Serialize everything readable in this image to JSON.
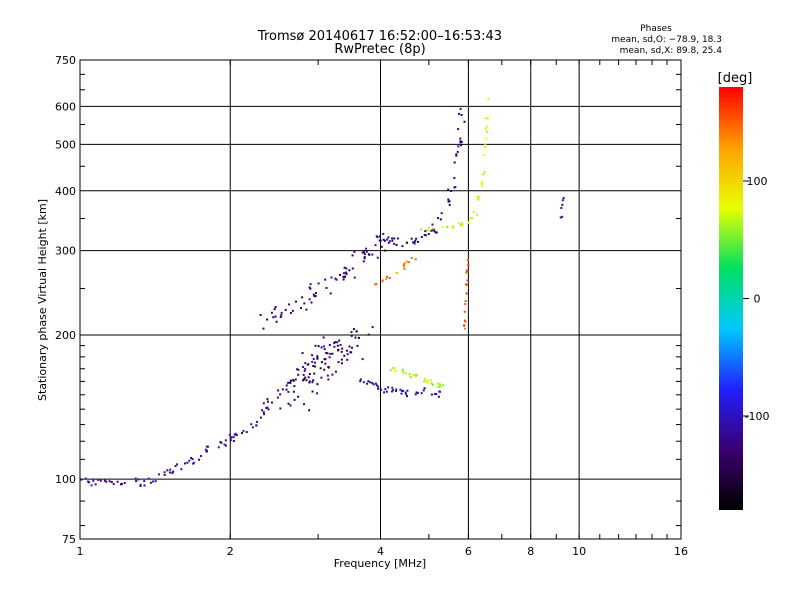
{
  "chart_data": {
    "type": "scatter",
    "title": "Tromsø 20140617 16:52:00–16:53:43",
    "subtitle": "RwPretec (8p)",
    "xlabel": "Frequency [MHz]",
    "ylabel": "Stationary phase Virtual Height [km]",
    "x_scale": "log",
    "y_scale": "log",
    "xlim": [
      1,
      16
    ],
    "ylim": [
      75,
      750
    ],
    "x_ticks": [
      1,
      2,
      4,
      6,
      8,
      10,
      16
    ],
    "y_ticks": [
      75,
      100,
      200,
      300,
      400,
      500,
      600,
      750
    ],
    "grid": true,
    "phase_box": {
      "heading": "Phases",
      "line_o": "mean, sd,O: −78.9, 18.3",
      "line_x": "mean, sd,X:  89.8, 25.4"
    },
    "colorbar": {
      "label": "[deg]",
      "range": [
        -180,
        180
      ],
      "ticks": [
        100,
        0,
        -100
      ],
      "stops": [
        "#000000",
        "#3a0070",
        "#2020ff",
        "#00c8ff",
        "#00e060",
        "#e8ff00",
        "#ffa000",
        "#ff0000"
      ]
    },
    "series": [
      {
        "traces": [
          {
            "f": [
              1.0,
              1.07,
              1.15,
              1.25,
              1.35,
              1.45,
              1.55,
              1.65,
              1.75,
              1.85,
              1.95,
              2.05,
              2.15,
              2.25,
              2.35,
              2.5,
              2.65,
              2.8,
              2.95,
              3.1
            ],
            "h": [
              99,
              98,
              98,
              98,
              99,
              102,
              105,
              108,
              112,
              117,
              120,
              123,
              126,
              132,
              140,
              150,
              160,
              170,
              178,
              188
            ],
            "phase": -115,
            "spread": 0.02,
            "n": 6
          },
          {
            "f": [
              2.3,
              2.5,
              2.6,
              2.75,
              2.9,
              3.05,
              3.2,
              3.35,
              3.5,
              3.65,
              3.8,
              3.95,
              4.05
            ],
            "h": [
              210,
              215,
              225,
              232,
              240,
              250,
              258,
              265,
              275,
              285,
              295,
              310,
              320
            ],
            "phase": -130,
            "spread": 0.04,
            "n": 6
          },
          {
            "f": [
              2.7,
              2.85,
              3.0,
              3.2,
              3.4,
              3.6
            ],
            "h": [
              150,
              160,
              172,
              180,
              190,
              195
            ],
            "phase": -135,
            "spread": 0.08,
            "n": 18
          },
          {
            "f": [
              3.9,
              4.2,
              4.5,
              4.8,
              5.1,
              5.4,
              5.6,
              5.75,
              5.85
            ],
            "h": [
              325,
              315,
              310,
              318,
              330,
              360,
              420,
              500,
              600
            ],
            "phase": -125,
            "spread": 0.015,
            "n": 8
          },
          {
            "f": [
              3.6,
              3.8,
              4.0,
              4.2,
              4.4,
              4.6,
              5.0,
              5.3
            ],
            "h": [
              160,
              158,
              155,
              153,
              152,
              151,
              153,
              150
            ],
            "phase": -110,
            "spread": 0.015,
            "n": 6
          },
          {
            "f": [
              4.2,
              4.4,
              4.6,
              4.8,
              5.0,
              5.2,
              5.4
            ],
            "h": [
              170,
              168,
              165,
              162,
              160,
              157,
              155
            ],
            "phase": 70,
            "spread": 0.01,
            "n": 5
          },
          {
            "f": [
              3.9,
              4.1,
              4.3,
              4.5,
              4.7
            ],
            "h": [
              255,
              262,
              270,
              280,
              290
            ],
            "phase": 140,
            "spread": 0.01,
            "n": 4
          },
          {
            "f": [
              4.8,
              5.2,
              5.6,
              6.0,
              6.2,
              6.35,
              6.45,
              6.5,
              6.55
            ],
            "h": [
              330,
              335,
              338,
              345,
              360,
              400,
              460,
              540,
              620
            ],
            "phase": 75,
            "spread": 0.01,
            "n": 5
          },
          {
            "f": [
              5.9,
              5.92,
              5.94,
              5.96,
              5.98
            ],
            "h": [
              200,
              220,
              250,
              270,
              290
            ],
            "phase": 160,
            "spread": 0.005,
            "n": 4
          },
          {
            "f": [
              9.2,
              9.25,
              9.3
            ],
            "h": [
              350,
              370,
              390
            ],
            "phase": -120,
            "spread": 0.005,
            "n": 3
          }
        ]
      }
    ]
  }
}
